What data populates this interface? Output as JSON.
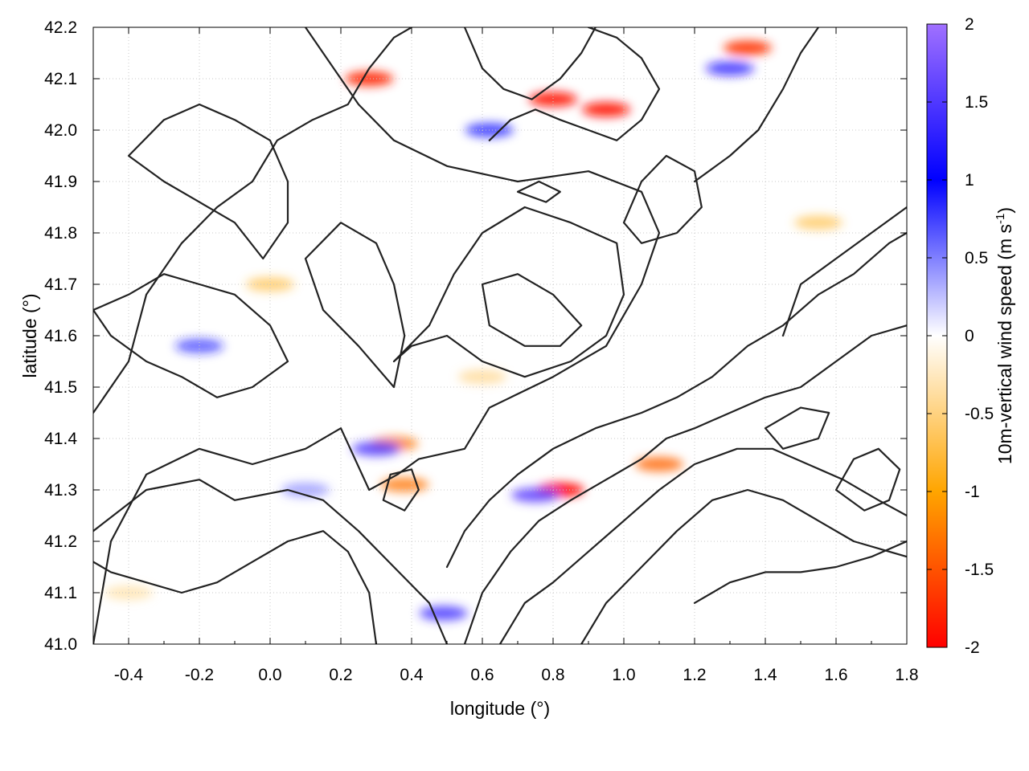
{
  "chart_data": {
    "type": "heatmap",
    "title": "",
    "xlabel": "longitude (°)",
    "ylabel": "latitude (°)",
    "colorbar_label": "10m-vertical wind speed (m s⁻¹)",
    "colorbar_label_base": "10m-vertical wind speed (m s",
    "colorbar_label_exp": "-1",
    "colorbar_label_end": ")",
    "xlim": [
      -0.5,
      1.8
    ],
    "ylim": [
      41.0,
      42.2
    ],
    "clim": [
      -2,
      2
    ],
    "x_ticks": [
      "-0.4",
      "-0.2",
      "0.0",
      "0.2",
      "0.4",
      "0.6",
      "0.8",
      "1.0",
      "1.2",
      "1.4",
      "1.6",
      "1.8"
    ],
    "x_tick_values": [
      -0.4,
      -0.2,
      0.0,
      0.2,
      0.4,
      0.6,
      0.8,
      1.0,
      1.2,
      1.4,
      1.6,
      1.8
    ],
    "y_ticks": [
      "41.0",
      "41.1",
      "41.2",
      "41.3",
      "41.4",
      "41.5",
      "41.6",
      "41.7",
      "41.8",
      "41.9",
      "42.0",
      "42.1",
      "42.2"
    ],
    "y_tick_values": [
      41.0,
      41.1,
      41.2,
      41.3,
      41.4,
      41.5,
      41.6,
      41.7,
      41.8,
      41.9,
      42.0,
      42.1,
      42.2
    ],
    "colorbar_ticks": [
      "2",
      "1.5",
      "1",
      "0.5",
      "0",
      "-0.5",
      "-1",
      "-1.5",
      "-2"
    ],
    "colorbar_tick_values": [
      2,
      1.5,
      1,
      0.5,
      0,
      -0.5,
      -1,
      -1.5,
      -2
    ],
    "colormap": [
      {
        "value": -2,
        "color": "#ff0000"
      },
      {
        "value": -1,
        "color": "#ffa500"
      },
      {
        "value": 0,
        "color": "#ffffff"
      },
      {
        "value": 1,
        "color": "#0000ff"
      },
      {
        "value": 2,
        "color": "#a070ff"
      }
    ],
    "grid": true,
    "hotspots": [
      {
        "lon": 0.28,
        "lat": 42.1,
        "value": -1.8
      },
      {
        "lon": 0.8,
        "lat": 42.06,
        "value": -1.9
      },
      {
        "lon": 0.95,
        "lat": 42.04,
        "value": -1.9
      },
      {
        "lon": 1.35,
        "lat": 42.16,
        "value": -1.7
      },
      {
        "lon": 0.82,
        "lat": 41.3,
        "value": -2.0
      },
      {
        "lon": 0.35,
        "lat": 41.39,
        "value": -1.3
      },
      {
        "lon": 0.38,
        "lat": 41.31,
        "value": -1.3
      },
      {
        "lon": 1.1,
        "lat": 41.35,
        "value": -1.4
      },
      {
        "lon": 0.3,
        "lat": 41.38,
        "value": 1.5
      },
      {
        "lon": 0.75,
        "lat": 41.29,
        "value": 1.6
      },
      {
        "lon": 0.49,
        "lat": 41.06,
        "value": 1.4
      },
      {
        "lon": 0.62,
        "lat": 42.0,
        "value": 1.0
      },
      {
        "lon": -0.2,
        "lat": 41.58,
        "value": 0.9
      },
      {
        "lon": 1.3,
        "lat": 42.12,
        "value": 1.2
      },
      {
        "lon": 0.0,
        "lat": 41.7,
        "value": -0.8
      },
      {
        "lon": 1.55,
        "lat": 41.82,
        "value": -0.8
      },
      {
        "lon": 0.6,
        "lat": 41.52,
        "value": -0.6
      },
      {
        "lon": -0.4,
        "lat": 41.1,
        "value": -0.5
      },
      {
        "lon": 0.1,
        "lat": 41.3,
        "value": 0.6
      }
    ],
    "contours": [
      [
        [
          -0.5,
          41.0
        ],
        [
          -0.45,
          41.2
        ],
        [
          -0.35,
          41.33
        ],
        [
          -0.2,
          41.38
        ],
        [
          -0.05,
          41.35
        ],
        [
          0.1,
          41.38
        ],
        [
          0.2,
          41.42
        ],
        [
          0.28,
          41.3
        ],
        [
          0.36,
          41.33
        ],
        [
          0.42,
          41.36
        ],
        [
          0.55,
          41.38
        ],
        [
          0.62,
          41.46
        ],
        [
          0.8,
          41.52
        ],
        [
          0.95,
          41.58
        ],
        [
          1.05,
          41.7
        ],
        [
          1.1,
          41.8
        ],
        [
          1.05,
          41.88
        ],
        [
          0.9,
          41.92
        ],
        [
          0.7,
          41.9
        ],
        [
          0.5,
          41.93
        ],
        [
          0.35,
          41.98
        ],
        [
          0.25,
          42.05
        ],
        [
          0.18,
          42.12
        ],
        [
          0.1,
          42.2
        ]
      ],
      [
        [
          -0.5,
          41.45
        ],
        [
          -0.4,
          41.55
        ],
        [
          -0.35,
          41.68
        ],
        [
          -0.25,
          41.78
        ],
        [
          -0.15,
          41.85
        ],
        [
          -0.05,
          41.9
        ],
        [
          0.02,
          41.98
        ],
        [
          0.12,
          42.02
        ],
        [
          0.22,
          42.05
        ],
        [
          0.28,
          42.12
        ],
        [
          0.35,
          42.18
        ],
        [
          0.4,
          42.2
        ]
      ],
      [
        [
          -0.5,
          41.22
        ],
        [
          -0.35,
          41.3
        ],
        [
          -0.2,
          41.32
        ],
        [
          -0.1,
          41.28
        ],
        [
          0.05,
          41.3
        ],
        [
          0.15,
          41.28
        ],
        [
          0.25,
          41.22
        ],
        [
          0.35,
          41.15
        ],
        [
          0.45,
          41.08
        ],
        [
          0.5,
          41.0
        ]
      ],
      [
        [
          -0.4,
          41.95
        ],
        [
          -0.3,
          41.9
        ],
        [
          -0.2,
          41.86
        ],
        [
          -0.1,
          41.82
        ],
        [
          -0.02,
          41.75
        ],
        [
          0.05,
          41.82
        ],
        [
          0.05,
          41.9
        ],
        [
          0.0,
          41.98
        ],
        [
          -0.1,
          42.02
        ],
        [
          -0.2,
          42.05
        ],
        [
          -0.3,
          42.02
        ],
        [
          -0.4,
          41.95
        ]
      ],
      [
        [
          0.1,
          41.75
        ],
        [
          0.15,
          41.65
        ],
        [
          0.25,
          41.58
        ],
        [
          0.35,
          41.5
        ],
        [
          0.38,
          41.6
        ],
        [
          0.35,
          41.7
        ],
        [
          0.3,
          41.78
        ],
        [
          0.2,
          41.82
        ],
        [
          0.1,
          41.75
        ]
      ],
      [
        [
          0.35,
          41.55
        ],
        [
          0.45,
          41.62
        ],
        [
          0.52,
          41.72
        ],
        [
          0.6,
          41.8
        ],
        [
          0.72,
          41.85
        ],
        [
          0.85,
          41.82
        ],
        [
          0.98,
          41.78
        ],
        [
          1.0,
          41.68
        ],
        [
          0.95,
          41.6
        ],
        [
          0.85,
          41.55
        ],
        [
          0.72,
          41.52
        ],
        [
          0.6,
          41.55
        ],
        [
          0.5,
          41.6
        ],
        [
          0.4,
          41.58
        ],
        [
          0.35,
          41.55
        ]
      ],
      [
        [
          0.6,
          41.7
        ],
        [
          0.7,
          41.72
        ],
        [
          0.8,
          41.68
        ],
        [
          0.88,
          41.62
        ],
        [
          0.82,
          41.58
        ],
        [
          0.72,
          41.58
        ],
        [
          0.62,
          41.62
        ],
        [
          0.6,
          41.7
        ]
      ],
      [
        [
          0.5,
          41.15
        ],
        [
          0.55,
          41.22
        ],
        [
          0.62,
          41.28
        ],
        [
          0.7,
          41.33
        ],
        [
          0.8,
          41.38
        ],
        [
          0.92,
          41.42
        ],
        [
          1.05,
          41.45
        ],
        [
          1.15,
          41.48
        ],
        [
          1.25,
          41.52
        ],
        [
          1.35,
          41.58
        ],
        [
          1.45,
          41.62
        ],
        [
          1.55,
          41.68
        ],
        [
          1.65,
          41.72
        ],
        [
          1.75,
          41.78
        ],
        [
          1.8,
          41.8
        ]
      ],
      [
        [
          0.55,
          41.0
        ],
        [
          0.6,
          41.1
        ],
        [
          0.68,
          41.18
        ],
        [
          0.76,
          41.24
        ],
        [
          0.85,
          41.28
        ],
        [
          0.95,
          41.32
        ],
        [
          1.05,
          41.36
        ],
        [
          1.12,
          41.4
        ],
        [
          1.2,
          41.42
        ],
        [
          1.3,
          41.45
        ],
        [
          1.4,
          41.48
        ],
        [
          1.5,
          41.5
        ],
        [
          1.6,
          41.55
        ],
        [
          1.7,
          41.6
        ],
        [
          1.8,
          41.62
        ]
      ],
      [
        [
          0.65,
          41.0
        ],
        [
          0.72,
          41.08
        ],
        [
          0.8,
          41.12
        ],
        [
          0.9,
          41.18
        ],
        [
          1.0,
          41.24
        ],
        [
          1.1,
          41.3
        ],
        [
          1.2,
          41.35
        ],
        [
          1.32,
          41.38
        ],
        [
          1.42,
          41.38
        ],
        [
          1.52,
          41.35
        ],
        [
          1.62,
          41.32
        ],
        [
          1.72,
          41.28
        ],
        [
          1.8,
          41.25
        ]
      ],
      [
        [
          0.88,
          41.0
        ],
        [
          0.95,
          41.08
        ],
        [
          1.05,
          41.15
        ],
        [
          1.15,
          41.22
        ],
        [
          1.25,
          41.28
        ],
        [
          1.35,
          41.3
        ],
        [
          1.45,
          41.28
        ],
        [
          1.55,
          41.24
        ],
        [
          1.65,
          41.2
        ],
        [
          1.75,
          41.18
        ],
        [
          1.8,
          41.17
        ]
      ],
      [
        [
          1.2,
          41.08
        ],
        [
          1.3,
          41.12
        ],
        [
          1.4,
          41.14
        ],
        [
          1.5,
          41.14
        ],
        [
          1.6,
          41.15
        ],
        [
          1.7,
          41.17
        ],
        [
          1.8,
          41.2
        ]
      ],
      [
        [
          0.62,
          41.98
        ],
        [
          0.68,
          42.02
        ],
        [
          0.75,
          42.04
        ],
        [
          0.82,
          42.02
        ],
        [
          0.9,
          42.0
        ],
        [
          0.98,
          41.98
        ],
        [
          1.05,
          42.02
        ],
        [
          1.1,
          42.08
        ],
        [
          1.05,
          42.14
        ],
        [
          0.98,
          42.18
        ],
        [
          0.9,
          42.2
        ]
      ],
      [
        [
          0.55,
          42.2
        ],
        [
          0.6,
          42.12
        ],
        [
          0.66,
          42.08
        ],
        [
          0.74,
          42.06
        ],
        [
          0.82,
          42.1
        ],
        [
          0.88,
          42.15
        ],
        [
          0.92,
          42.2
        ]
      ],
      [
        [
          1.2,
          41.9
        ],
        [
          1.3,
          41.95
        ],
        [
          1.38,
          42.0
        ],
        [
          1.45,
          42.08
        ],
        [
          1.5,
          42.15
        ],
        [
          1.55,
          42.2
        ]
      ],
      [
        [
          1.45,
          41.6
        ],
        [
          1.5,
          41.7
        ],
        [
          1.6,
          41.75
        ],
        [
          1.7,
          41.8
        ],
        [
          1.8,
          41.85
        ]
      ],
      [
        [
          -0.5,
          41.65
        ],
        [
          -0.4,
          41.68
        ],
        [
          -0.3,
          41.72
        ],
        [
          -0.2,
          41.7
        ],
        [
          -0.1,
          41.68
        ],
        [
          0.0,
          41.62
        ],
        [
          0.05,
          41.55
        ],
        [
          -0.05,
          41.5
        ],
        [
          -0.15,
          41.48
        ],
        [
          -0.25,
          41.52
        ],
        [
          -0.35,
          41.55
        ],
        [
          -0.45,
          41.6
        ],
        [
          -0.5,
          41.65
        ]
      ],
      [
        [
          0.3,
          41.0
        ],
        [
          0.28,
          41.1
        ],
        [
          0.22,
          41.18
        ],
        [
          0.15,
          41.22
        ],
        [
          0.05,
          41.2
        ],
        [
          -0.05,
          41.16
        ],
        [
          -0.15,
          41.12
        ],
        [
          -0.25,
          41.1
        ],
        [
          -0.35,
          41.12
        ],
        [
          -0.45,
          41.14
        ],
        [
          -0.5,
          41.16
        ]
      ],
      [
        [
          0.32,
          41.28
        ],
        [
          0.38,
          41.26
        ],
        [
          0.42,
          41.3
        ],
        [
          0.4,
          41.34
        ],
        [
          0.34,
          41.33
        ],
        [
          0.32,
          41.28
        ]
      ],
      [
        [
          1.6,
          41.3
        ],
        [
          1.65,
          41.36
        ],
        [
          1.72,
          41.38
        ],
        [
          1.78,
          41.34
        ],
        [
          1.75,
          41.28
        ],
        [
          1.68,
          41.26
        ],
        [
          1.6,
          41.3
        ]
      ],
      [
        [
          1.0,
          41.82
        ],
        [
          1.05,
          41.9
        ],
        [
          1.12,
          41.95
        ],
        [
          1.2,
          41.92
        ],
        [
          1.22,
          41.85
        ],
        [
          1.15,
          41.8
        ],
        [
          1.05,
          41.78
        ],
        [
          1.0,
          41.82
        ]
      ],
      [
        [
          0.7,
          41.88
        ],
        [
          0.76,
          41.9
        ],
        [
          0.82,
          41.88
        ],
        [
          0.78,
          41.86
        ],
        [
          0.7,
          41.88
        ]
      ],
      [
        [
          1.4,
          41.42
        ],
        [
          1.5,
          41.46
        ],
        [
          1.58,
          41.45
        ],
        [
          1.55,
          41.4
        ],
        [
          1.45,
          41.38
        ],
        [
          1.4,
          41.42
        ]
      ]
    ]
  }
}
